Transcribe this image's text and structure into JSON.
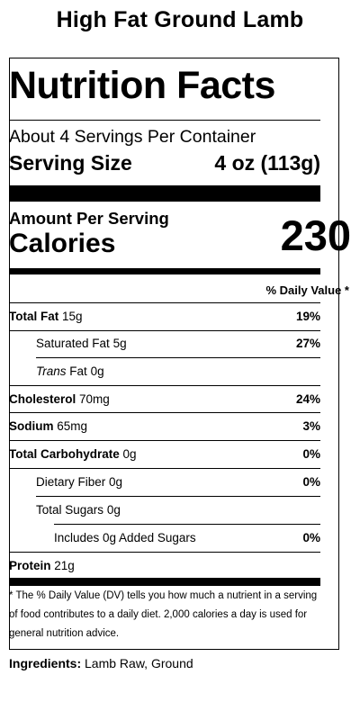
{
  "product": {
    "title": "High Fat Ground Lamb"
  },
  "label": {
    "heading": "Nutrition Facts",
    "servings_per_container": "About 4 Servings Per Container",
    "serving_size_label": "Serving Size",
    "serving_size_value": "4 oz (113g)",
    "amount_per_serving": "Amount Per Serving",
    "calories_label": "Calories",
    "calories_value": "230",
    "daily_value_header": "% Daily Value *",
    "nutrients": [
      {
        "name": "Total Fat",
        "amount": "15g",
        "dv": "19%"
      },
      {
        "name": "Saturated Fat",
        "amount": "5g",
        "dv": "27%"
      },
      {
        "name_italic": "Trans",
        "name": "Fat",
        "amount": "0g",
        "dv": ""
      },
      {
        "name": "Cholesterol",
        "amount": "70mg",
        "dv": "24%"
      },
      {
        "name": "Sodium",
        "amount": "65mg",
        "dv": "3%"
      },
      {
        "name": "Total Carbohydrate",
        "amount": "0g",
        "dv": "0%"
      },
      {
        "name": "Dietary Fiber",
        "amount": "0g",
        "dv": "0%"
      },
      {
        "name": "Total Sugars",
        "amount": "0g",
        "dv": ""
      },
      {
        "name": "Includes 0g Added Sugars",
        "amount": "",
        "dv": "0%"
      },
      {
        "name": "Protein",
        "amount": "21g",
        "dv": ""
      }
    ],
    "footnote": "* The % Daily Value (DV) tells you how much a nutrient in a serving of food contributes to a daily diet. 2,000 calories a day is used for general nutrition advice."
  },
  "ingredients": {
    "label": "Ingredients:",
    "value": "Lamb Raw, Ground"
  }
}
